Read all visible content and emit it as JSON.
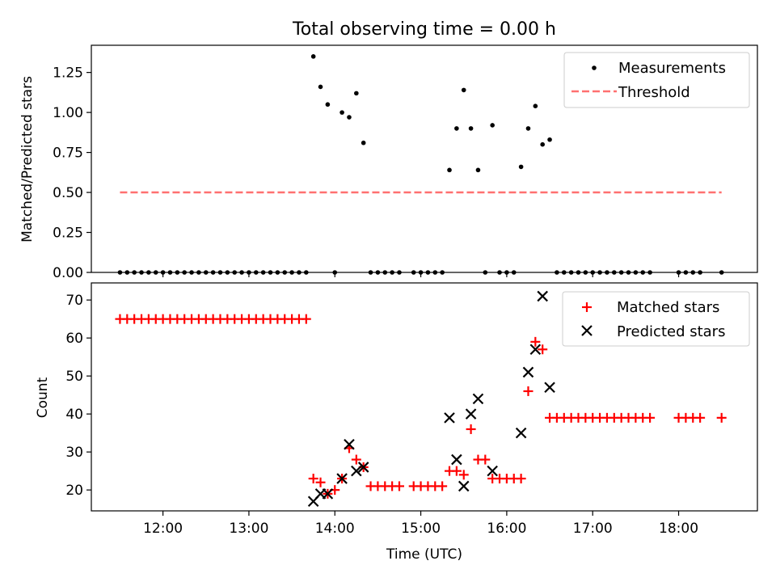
{
  "chart_data": [
    {
      "type": "scatter",
      "title": "Total observing time = 0.00 h",
      "xlabel": "",
      "ylabel": "Matched/Predicted stars",
      "ylim": [
        0,
        1.42
      ],
      "yticks": [
        "0.00",
        "0.25",
        "0.50",
        "0.75",
        "1.00",
        "1.25"
      ],
      "ytick_values": [
        0,
        0.25,
        0.5,
        0.75,
        1.0,
        1.25
      ],
      "legend_position": "top-right",
      "legend": [
        "Measurements",
        "Threshold"
      ],
      "grid": false,
      "series": [
        {
          "name": "Measurements",
          "marker": "dot",
          "color": "#000000",
          "points": [
            [
              "11:30",
              0
            ],
            [
              "11:35",
              0
            ],
            [
              "11:40",
              0
            ],
            [
              "11:45",
              0
            ],
            [
              "11:50",
              0
            ],
            [
              "11:55",
              0
            ],
            [
              "12:00",
              0
            ],
            [
              "12:05",
              0
            ],
            [
              "12:10",
              0
            ],
            [
              "12:15",
              0
            ],
            [
              "12:20",
              0
            ],
            [
              "12:25",
              0
            ],
            [
              "12:30",
              0
            ],
            [
              "12:35",
              0
            ],
            [
              "12:40",
              0
            ],
            [
              "12:45",
              0
            ],
            [
              "12:50",
              0
            ],
            [
              "12:55",
              0
            ],
            [
              "13:00",
              0
            ],
            [
              "13:05",
              0
            ],
            [
              "13:10",
              0
            ],
            [
              "13:15",
              0
            ],
            [
              "13:20",
              0
            ],
            [
              "13:25",
              0
            ],
            [
              "13:30",
              0
            ],
            [
              "13:35",
              0
            ],
            [
              "13:40",
              0
            ],
            [
              "13:45",
              1.35
            ],
            [
              "13:50",
              1.16
            ],
            [
              "13:55",
              1.05
            ],
            [
              "14:00",
              0
            ],
            [
              "14:05",
              1.0
            ],
            [
              "14:10",
              0.97
            ],
            [
              "14:15",
              1.12
            ],
            [
              "14:20",
              0.81
            ],
            [
              "14:25",
              0
            ],
            [
              "14:30",
              0
            ],
            [
              "14:35",
              0
            ],
            [
              "14:40",
              0
            ],
            [
              "14:45",
              0
            ],
            [
              "14:55",
              0
            ],
            [
              "15:00",
              0
            ],
            [
              "15:05",
              0
            ],
            [
              "15:10",
              0
            ],
            [
              "15:15",
              0
            ],
            [
              "15:20",
              0.64
            ],
            [
              "15:25",
              0.9
            ],
            [
              "15:30",
              1.14
            ],
            [
              "15:35",
              0.9
            ],
            [
              "15:40",
              0.64
            ],
            [
              "15:45",
              0
            ],
            [
              "15:50",
              0.92
            ],
            [
              "15:55",
              0
            ],
            [
              "16:00",
              0
            ],
            [
              "16:05",
              0
            ],
            [
              "16:10",
              0.66
            ],
            [
              "16:15",
              0.9
            ],
            [
              "16:20",
              1.04
            ],
            [
              "16:25",
              0.8
            ],
            [
              "16:30",
              0.83
            ],
            [
              "16:35",
              0
            ],
            [
              "16:40",
              0
            ],
            [
              "16:45",
              0
            ],
            [
              "16:50",
              0
            ],
            [
              "16:55",
              0
            ],
            [
              "17:00",
              0
            ],
            [
              "17:05",
              0
            ],
            [
              "17:10",
              0
            ],
            [
              "17:15",
              0
            ],
            [
              "17:20",
              0
            ],
            [
              "17:25",
              0
            ],
            [
              "17:30",
              0
            ],
            [
              "17:35",
              0
            ],
            [
              "17:40",
              0
            ],
            [
              "18:00",
              0
            ],
            [
              "18:05",
              0
            ],
            [
              "18:10",
              0
            ],
            [
              "18:15",
              0
            ],
            [
              "18:30",
              0
            ]
          ]
        },
        {
          "name": "Threshold",
          "marker": "dashed-line",
          "color": "#ff7070",
          "points": [
            [
              "11:30",
              0.5
            ],
            [
              "18:30",
              0.5
            ]
          ]
        }
      ]
    },
    {
      "type": "scatter",
      "title": "",
      "xlabel": "Time (UTC)",
      "ylabel": "Count",
      "ylim": [
        14.5,
        74.5
      ],
      "yticks": [
        "20",
        "30",
        "40",
        "50",
        "60",
        "70"
      ],
      "ytick_values": [
        20,
        30,
        40,
        50,
        60,
        70
      ],
      "xlim": [
        "11:10",
        "18:55"
      ],
      "xticks": [
        "12:00",
        "13:00",
        "14:00",
        "15:00",
        "16:00",
        "17:00",
        "18:00"
      ],
      "legend_position": "top-right",
      "legend": [
        "Matched stars",
        "Predicted stars"
      ],
      "grid": false,
      "series": [
        {
          "name": "Matched stars",
          "marker": "plus",
          "color": "#ff0000",
          "points": [
            [
              "11:30",
              65
            ],
            [
              "11:35",
              65
            ],
            [
              "11:40",
              65
            ],
            [
              "11:45",
              65
            ],
            [
              "11:50",
              65
            ],
            [
              "11:55",
              65
            ],
            [
              "12:00",
              65
            ],
            [
              "12:05",
              65
            ],
            [
              "12:10",
              65
            ],
            [
              "12:15",
              65
            ],
            [
              "12:20",
              65
            ],
            [
              "12:25",
              65
            ],
            [
              "12:30",
              65
            ],
            [
              "12:35",
              65
            ],
            [
              "12:40",
              65
            ],
            [
              "12:45",
              65
            ],
            [
              "12:50",
              65
            ],
            [
              "12:55",
              65
            ],
            [
              "13:00",
              65
            ],
            [
              "13:05",
              65
            ],
            [
              "13:10",
              65
            ],
            [
              "13:15",
              65
            ],
            [
              "13:20",
              65
            ],
            [
              "13:25",
              65
            ],
            [
              "13:30",
              65
            ],
            [
              "13:35",
              65
            ],
            [
              "13:40",
              65
            ],
            [
              "13:45",
              23
            ],
            [
              "13:50",
              22
            ],
            [
              "13:55",
              19
            ],
            [
              "14:00",
              20
            ],
            [
              "14:05",
              23
            ],
            [
              "14:10",
              31
            ],
            [
              "14:15",
              28
            ],
            [
              "14:20",
              26
            ],
            [
              "14:25",
              21
            ],
            [
              "14:30",
              21
            ],
            [
              "14:35",
              21
            ],
            [
              "14:40",
              21
            ],
            [
              "14:45",
              21
            ],
            [
              "14:55",
              21
            ],
            [
              "15:00",
              21
            ],
            [
              "15:05",
              21
            ],
            [
              "15:10",
              21
            ],
            [
              "15:15",
              21
            ],
            [
              "15:20",
              25
            ],
            [
              "15:25",
              25
            ],
            [
              "15:30",
              24
            ],
            [
              "15:35",
              36
            ],
            [
              "15:40",
              28
            ],
            [
              "15:45",
              28
            ],
            [
              "15:50",
              23
            ],
            [
              "15:55",
              23
            ],
            [
              "16:00",
              23
            ],
            [
              "16:05",
              23
            ],
            [
              "16:10",
              23
            ],
            [
              "16:15",
              46
            ],
            [
              "16:20",
              59
            ],
            [
              "16:25",
              57
            ],
            [
              "16:30",
              39
            ],
            [
              "16:35",
              39
            ],
            [
              "16:40",
              39
            ],
            [
              "16:45",
              39
            ],
            [
              "16:50",
              39
            ],
            [
              "16:55",
              39
            ],
            [
              "17:00",
              39
            ],
            [
              "17:05",
              39
            ],
            [
              "17:10",
              39
            ],
            [
              "17:15",
              39
            ],
            [
              "17:20",
              39
            ],
            [
              "17:25",
              39
            ],
            [
              "17:30",
              39
            ],
            [
              "17:35",
              39
            ],
            [
              "17:40",
              39
            ],
            [
              "18:00",
              39
            ],
            [
              "18:05",
              39
            ],
            [
              "18:10",
              39
            ],
            [
              "18:15",
              39
            ],
            [
              "18:30",
              39
            ]
          ]
        },
        {
          "name": "Predicted stars",
          "marker": "x",
          "color": "#000000",
          "points": [
            [
              "13:45",
              17
            ],
            [
              "13:50",
              19
            ],
            [
              "13:55",
              19
            ],
            [
              "14:05",
              23
            ],
            [
              "14:10",
              32
            ],
            [
              "14:15",
              25
            ],
            [
              "14:20",
              26
            ],
            [
              "15:20",
              39
            ],
            [
              "15:25",
              28
            ],
            [
              "15:30",
              21
            ],
            [
              "15:35",
              40
            ],
            [
              "15:40",
              44
            ],
            [
              "15:50",
              25
            ],
            [
              "16:10",
              35
            ],
            [
              "16:15",
              51
            ],
            [
              "16:20",
              57
            ],
            [
              "16:25",
              71
            ],
            [
              "16:30",
              47
            ]
          ]
        }
      ]
    }
  ]
}
